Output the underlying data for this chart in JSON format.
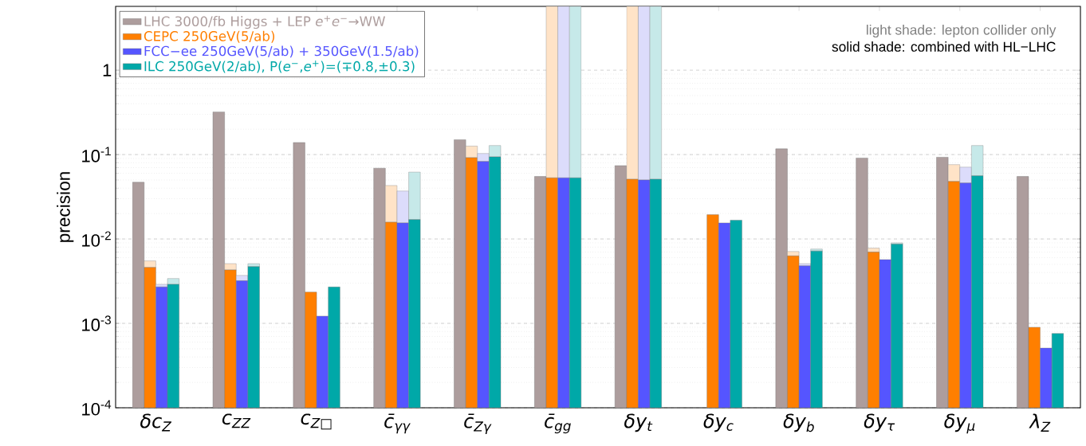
{
  "chart_data": {
    "type": "bar",
    "ylabel": "precision",
    "categories": [
      "δc$_{Z}$",
      "c$_{ZZ}$",
      "c$_{Z□}$",
      "c̄$_{γγ}$",
      "c̄$_{Zγ}$",
      "c̄$_{gg}$",
      "δy$_{t}$",
      "δy$_{c}$",
      "δy$_{b}$",
      "δy$_{τ}$",
      "δy$_{μ}$",
      "λ$_{Z}$"
    ],
    "series": [
      {
        "name": "LHC 3000/fb Higgs + LEP *e*$^{+}$*e*$^{−}$→WW",
        "color": "#ad9d9d",
        "values": [
          0.047,
          0.32,
          0.139,
          0.069,
          0.15,
          0.055,
          0.074,
          null,
          0.117,
          0.091,
          0.093,
          0.055
        ]
      },
      {
        "color": "#ffe3c7",
        "base": [
          0.0046,
          0.0043,
          null,
          0.0158,
          0.092,
          0.053,
          0.051,
          null,
          0.0063,
          0.007,
          0.048,
          null
        ],
        "values": [
          0.0009,
          0.0008,
          null,
          0.0272,
          0.034,
          5.647,
          5.649,
          null,
          0.0008,
          0.0008,
          0.028,
          null
        ]
      },
      {
        "name": "CEPC 250GeV(5/ab)",
        "color": "#ff7f00",
        "values": [
          0.0046,
          0.0043,
          0.00235,
          0.0158,
          0.092,
          0.053,
          0.051,
          0.0194,
          0.0063,
          0.007,
          0.048,
          0.0009
        ]
      },
      {
        "color": "#dcdcfb",
        "base": [
          0.0027,
          0.0032,
          null,
          0.0155,
          0.083,
          0.053,
          0.05,
          null,
          0.0048,
          null,
          0.046,
          null
        ],
        "values": [
          0.0002,
          0.0005,
          null,
          0.0215,
          0.02,
          5.647,
          5.65,
          null,
          0.0003,
          null,
          0.025,
          null
        ]
      },
      {
        "name": "FCC−ee 250GeV(5/ab) + 350GeV(1.5/ab)",
        "color": "#5555ff",
        "values": [
          0.0027,
          0.0032,
          0.00122,
          0.0155,
          0.083,
          0.053,
          0.05,
          0.0155,
          0.0048,
          0.0057,
          0.046,
          0.00051
        ]
      },
      {
        "color": "#c6e9e9",
        "base": [
          0.0029,
          0.0047,
          null,
          0.017,
          0.094,
          0.053,
          0.051,
          null,
          0.0072,
          0.0087,
          0.056,
          null
        ],
        "values": [
          0.0005,
          0.0004,
          null,
          0.045,
          0.034,
          5.647,
          5.649,
          null,
          0.0004,
          0.0003,
          0.072,
          null
        ]
      },
      {
        "name": "ILC 250GeV(2/ab), P(*e*$^{−}$,*e*$^{+}$)=(∓0.8,±0.3)",
        "color": "#00a8a8",
        "values": [
          0.0029,
          0.0047,
          0.0027,
          0.017,
          0.094,
          0.053,
          0.051,
          0.0167,
          0.0072,
          0.0087,
          0.056,
          0.00076
        ]
      }
    ],
    "ylim": [
      0.0001,
      5.7
    ],
    "yticks": [
      {
        "value": 0.0001,
        "label": "10$^{-4}$"
      },
      {
        "value": 0.001,
        "label": "10$^{-3}$"
      },
      {
        "value": 0.01,
        "label": "10$^{-2}$"
      },
      {
        "value": 0.1,
        "label": "10$^{-1}$"
      },
      1
    ],
    "log": true,
    "grid": "y",
    "legend": "top left",
    "annotations": [
      "light shade: lepton collider only",
      "solid shade: combined with HL−LHC"
    ]
  }
}
